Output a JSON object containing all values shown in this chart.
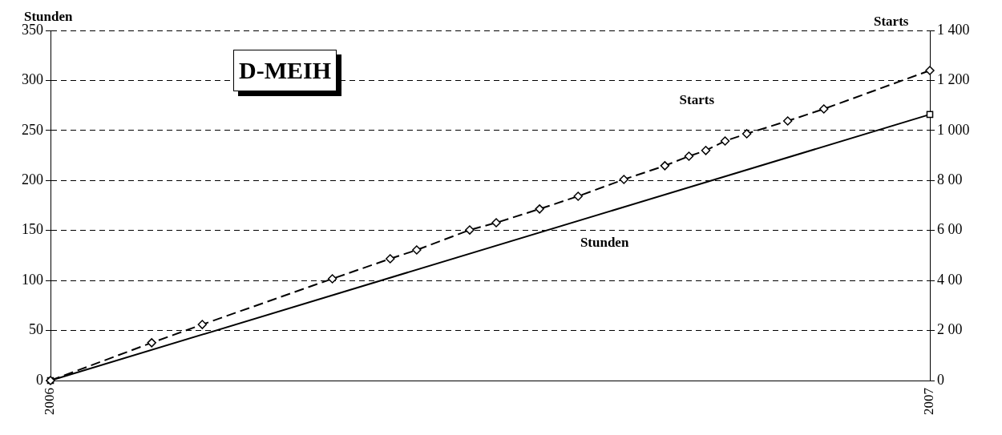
{
  "chart_data": {
    "type": "line",
    "title": "D-MEIH",
    "ylabel": "Stunden",
    "y2label": "Starts",
    "xlim": [
      "2006",
      "2007"
    ],
    "xticks": [
      "2006",
      "2007"
    ],
    "ylim": [
      0,
      350
    ],
    "yticks": [
      0,
      50,
      100,
      150,
      200,
      250,
      300,
      350
    ],
    "y2lim": [
      0,
      1400
    ],
    "y2ticks": [
      0,
      {
        "value": 200,
        "label": "2 00"
      },
      {
        "value": 400,
        "label": "4 00"
      },
      {
        "value": 600,
        "label": "6 00"
      },
      {
        "value": 800,
        "label": "8 00"
      },
      {
        "value": 1000,
        "label": "1 000"
      },
      {
        "value": 1200,
        "label": "1 200"
      },
      {
        "value": 1400,
        "label": "1 400"
      }
    ],
    "grid": "y",
    "legend": false,
    "series": [
      {
        "name": "Stunden",
        "color": "#000000",
        "marker": "square",
        "line_style": "solid",
        "x": [
          "2006-01-01",
          "2007-01-01"
        ],
        "values": [
          0,
          266
        ]
      },
      {
        "name": "Starts",
        "color": "#000000",
        "marker": "diamond",
        "line_style": "dashed",
        "axis": "y2",
        "x": [
          "2006-01-01",
          "2006-02-12",
          "2006-03-05",
          "2006-04-28",
          "2006-05-22",
          "2006-06-02",
          "2006-06-24",
          "2006-07-05",
          "2006-07-23",
          "2006-08-08",
          "2006-08-27",
          "2006-09-13",
          "2006-09-23",
          "2006-09-30",
          "2006-10-08",
          "2006-10-17",
          "2006-11-03",
          "2006-11-18",
          "2007-01-01"
        ],
        "values": [
          0,
          151,
          224,
          407,
          487,
          522,
          602,
          631,
          686,
          737,
          804,
          859,
          897,
          920,
          958,
          987,
          1038,
          1086,
          1240
        ]
      }
    ]
  }
}
